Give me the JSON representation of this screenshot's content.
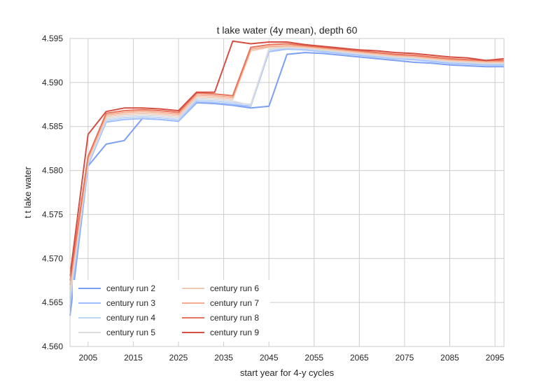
{
  "chart_data": {
    "type": "line",
    "title": "t lake water (4y mean), depth 60",
    "xlabel": "start year for 4-y cycles",
    "ylabel": "t t lake water",
    "xlim": [
      2001,
      2097
    ],
    "ylim": [
      4.56,
      4.595
    ],
    "xticks": [
      2005,
      2015,
      2025,
      2035,
      2045,
      2055,
      2065,
      2075,
      2085,
      2095
    ],
    "yticks": [
      4.56,
      4.565,
      4.57,
      4.575,
      4.58,
      4.585,
      4.59,
      4.595
    ],
    "xtick_labels": [
      "2005",
      "2015",
      "2025",
      "2035",
      "2045",
      "2055",
      "2065",
      "2075",
      "2085",
      "2095"
    ],
    "ytick_labels": [
      "4.560",
      "4.565",
      "4.570",
      "4.575",
      "4.580",
      "4.585",
      "4.590",
      "4.595"
    ],
    "grid": true,
    "legend_position": "bottom-left",
    "x": [
      2001,
      2005,
      2009,
      2013,
      2017,
      2021,
      2025,
      2029,
      2033,
      2037,
      2041,
      2045,
      2049,
      2053,
      2057,
      2061,
      2065,
      2069,
      2073,
      2077,
      2081,
      2085,
      2089,
      2093,
      2097
    ],
    "series": [
      {
        "name": "century run 2",
        "color": "#7b9ff2",
        "values": [
          4.5635,
          4.5805,
          4.583,
          4.5834,
          4.5859,
          4.5858,
          4.5856,
          4.5877,
          4.5876,
          4.5874,
          4.5871,
          4.5873,
          4.5932,
          4.5934,
          4.5933,
          4.5931,
          4.5929,
          4.5927,
          4.5925,
          4.5923,
          4.5922,
          4.592,
          4.5919,
          4.5918,
          4.5918
        ]
      },
      {
        "name": "century run 3",
        "color": "#9ebeff",
        "values": [
          4.5645,
          4.5806,
          4.5855,
          4.5858,
          4.5859,
          4.5858,
          4.5856,
          4.5878,
          4.5877,
          4.5875,
          4.5873,
          4.5935,
          4.5938,
          4.5937,
          4.5935,
          4.5933,
          4.5931,
          4.5929,
          4.5927,
          4.5926,
          4.5924,
          4.5922,
          4.5921,
          4.592,
          4.592
        ]
      },
      {
        "name": "century run 4",
        "color": "#c0d4f5",
        "values": [
          4.5655,
          4.5808,
          4.5857,
          4.586,
          4.5861,
          4.586,
          4.5858,
          4.588,
          4.5879,
          4.5877,
          4.5875,
          4.5937,
          4.5939,
          4.5938,
          4.5936,
          4.5934,
          4.5932,
          4.593,
          4.5928,
          4.5927,
          4.5925,
          4.5923,
          4.5922,
          4.5921,
          4.5921
        ]
      },
      {
        "name": "century run 5",
        "color": "#dddcdc",
        "values": [
          4.566,
          4.581,
          4.5859,
          4.5862,
          4.5863,
          4.5862,
          4.586,
          4.5882,
          4.5881,
          4.5879,
          4.5874,
          4.5938,
          4.594,
          4.5939,
          4.5937,
          4.5935,
          4.5933,
          4.5931,
          4.5929,
          4.5928,
          4.5926,
          4.5924,
          4.5923,
          4.5922,
          4.5922
        ]
      },
      {
        "name": "century run 6",
        "color": "#f2cbb7",
        "values": [
          4.5665,
          4.5812,
          4.5861,
          4.5864,
          4.5865,
          4.5864,
          4.5862,
          4.5884,
          4.5883,
          4.5881,
          4.5936,
          4.594,
          4.5941,
          4.594,
          4.5938,
          4.5936,
          4.5934,
          4.5932,
          4.593,
          4.5929,
          4.5927,
          4.5925,
          4.5924,
          4.5923,
          4.5923
        ]
      },
      {
        "name": "century run 7",
        "color": "#f7ad90",
        "values": [
          4.567,
          4.5814,
          4.5863,
          4.5866,
          4.5867,
          4.5866,
          4.5864,
          4.5886,
          4.5885,
          4.5883,
          4.5938,
          4.5941,
          4.5942,
          4.5941,
          4.5939,
          4.5937,
          4.5935,
          4.5933,
          4.5931,
          4.593,
          4.5928,
          4.5926,
          4.5925,
          4.5924,
          4.5924
        ]
      },
      {
        "name": "century run 8",
        "color": "#e7745b",
        "values": [
          4.5675,
          4.5816,
          4.5865,
          4.5868,
          4.5869,
          4.5868,
          4.5866,
          4.5888,
          4.5887,
          4.5885,
          4.594,
          4.5943,
          4.5944,
          4.5942,
          4.594,
          4.5938,
          4.5936,
          4.5934,
          4.5932,
          4.5931,
          4.5929,
          4.5927,
          4.5926,
          4.5925,
          4.5925
        ]
      },
      {
        "name": "century run 9",
        "color": "#d44e41",
        "values": [
          4.568,
          4.5841,
          4.5867,
          4.5871,
          4.5871,
          4.587,
          4.5868,
          4.5889,
          4.5889,
          4.5947,
          4.5944,
          4.5946,
          4.5946,
          4.5943,
          4.5941,
          4.5939,
          4.5937,
          4.5936,
          4.5934,
          4.5933,
          4.5931,
          4.5929,
          4.5928,
          4.5925,
          4.5927
        ]
      }
    ]
  }
}
